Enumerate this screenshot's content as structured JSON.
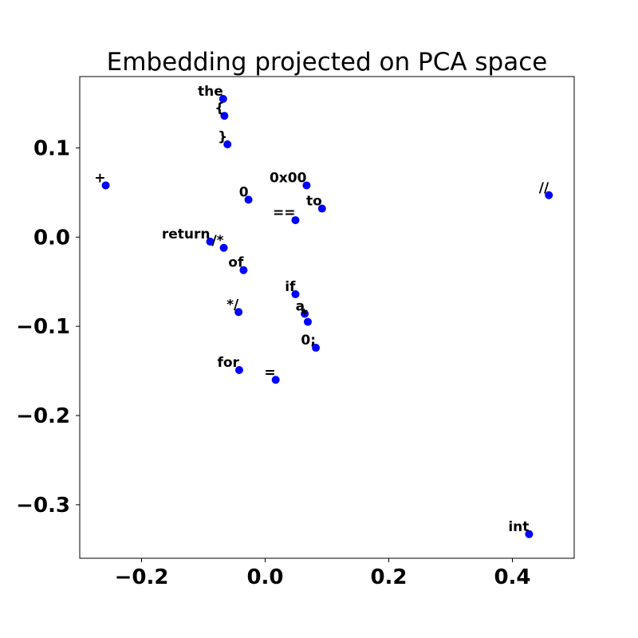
{
  "chart_data": {
    "type": "scatter",
    "title": "Embedding projected on PCA space",
    "xlabel": "",
    "ylabel": "",
    "xlim": [
      -0.3,
      0.5
    ],
    "ylim": [
      -0.36,
      0.18
    ],
    "xticks": [
      -0.2,
      0.0,
      0.2,
      0.4
    ],
    "xtick_labels": [
      "−0.2",
      "0.0",
      "0.2",
      "0.4"
    ],
    "yticks": [
      -0.3,
      -0.2,
      -0.1,
      0.0,
      0.1
    ],
    "ytick_labels": [
      "−0.3",
      "−0.2",
      "−0.1",
      "0.0",
      "0.1"
    ],
    "grid": false,
    "marker_color": "#0000ff",
    "points": [
      {
        "label": "the",
        "x": -0.068,
        "y": 0.155
      },
      {
        "label": "{",
        "x": -0.066,
        "y": 0.136
      },
      {
        "label": "}",
        "x": -0.061,
        "y": 0.104
      },
      {
        "label": "+",
        "x": -0.258,
        "y": 0.058
      },
      {
        "label": "0x00",
        "x": 0.067,
        "y": 0.058
      },
      {
        "label": "0",
        "x": -0.027,
        "y": 0.042
      },
      {
        "label": "to",
        "x": 0.092,
        "y": 0.032
      },
      {
        "label": "==",
        "x": 0.049,
        "y": 0.019
      },
      {
        "label": "//",
        "x": 0.459,
        "y": 0.047
      },
      {
        "label": "return",
        "x": -0.089,
        "y": -0.005
      },
      {
        "label": "/*",
        "x": -0.067,
        "y": -0.012
      },
      {
        "label": "of",
        "x": -0.035,
        "y": -0.037
      },
      {
        "label": "if",
        "x": 0.049,
        "y": -0.064
      },
      {
        "label": "a",
        "x": 0.064,
        "y": -0.086
      },
      {
        "label": "*",
        "x": 0.069,
        "y": -0.095
      },
      {
        "label": "*/",
        "x": -0.043,
        "y": -0.084
      },
      {
        "label": "0;",
        "x": 0.082,
        "y": -0.124
      },
      {
        "label": "for",
        "x": -0.042,
        "y": -0.149
      },
      {
        "label": "=",
        "x": 0.017,
        "y": -0.16
      },
      {
        "label": "int",
        "x": 0.427,
        "y": -0.333
      }
    ]
  }
}
